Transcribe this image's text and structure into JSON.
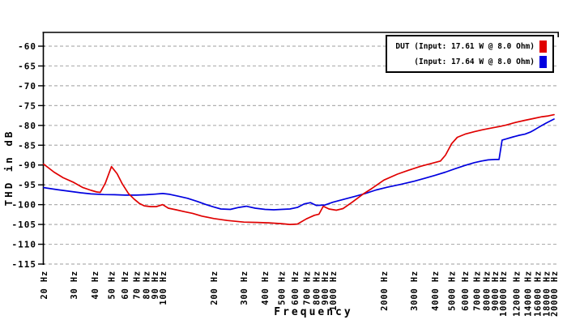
{
  "chart_data": {
    "type": "line",
    "title": "",
    "xlabel": "Frequency",
    "ylabel": "THD in dB",
    "x_scale": "log",
    "xlim": [
      20,
      20000
    ],
    "ylim": [
      -115,
      -60
    ],
    "grid": "horizontal-dashed",
    "legend_position": "top-right",
    "colors": {
      "axis": "#000000",
      "grid": "#b0b0b0",
      "background": "#ffffff"
    },
    "yticks": [
      -60,
      -65,
      -70,
      -75,
      -80,
      -85,
      -90,
      -95,
      -100,
      -105,
      -110,
      -115
    ],
    "xticks": [
      20,
      30,
      40,
      50,
      60,
      70,
      80,
      90,
      100,
      200,
      300,
      400,
      500,
      600,
      700,
      800,
      900,
      1000,
      2000,
      3000,
      4000,
      5000,
      6000,
      7000,
      8000,
      9000,
      10000,
      12000,
      14000,
      16000,
      18000,
      20000
    ],
    "xtick_labels": [
      "20 Hz",
      "30 Hz",
      "40 Hz",
      "50 Hz",
      "60 Hz",
      "70 Hz",
      "80 Hz",
      "90 Hz",
      "100 Hz",
      "200 Hz",
      "300 Hz",
      "400 Hz",
      "500 Hz",
      "600 Hz",
      "700 Hz",
      "800 Hz",
      "900 Hz",
      "1000 Hz",
      "2000 Hz",
      "3000 Hz",
      "4000 Hz",
      "5000 Hz",
      "6000 Hz",
      "7000 Hz",
      "8000 Hz",
      "9000 Hz",
      "10000 Hz",
      "12000 Hz",
      "14000 Hz",
      "16000 Hz",
      "18000 Hz",
      "20000 Hz"
    ],
    "series": [
      {
        "name": "DUT (Input: 17.61 W @ 8.0 Ohm)",
        "color": "#e00000",
        "points": [
          [
            20,
            -89.8
          ],
          [
            23,
            -91.8
          ],
          [
            26,
            -93.2
          ],
          [
            30,
            -94.4
          ],
          [
            34,
            -95.7
          ],
          [
            38,
            -96.4
          ],
          [
            41,
            -96.8
          ],
          [
            43,
            -96.9
          ],
          [
            46,
            -94.6
          ],
          [
            50,
            -90.4
          ],
          [
            54,
            -92.2
          ],
          [
            58,
            -94.8
          ],
          [
            63,
            -97.2
          ],
          [
            68,
            -98.6
          ],
          [
            73,
            -99.7
          ],
          [
            78,
            -100.3
          ],
          [
            85,
            -100.5
          ],
          [
            92,
            -100.5
          ],
          [
            100,
            -100.0
          ],
          [
            108,
            -100.9
          ],
          [
            120,
            -101.3
          ],
          [
            135,
            -101.8
          ],
          [
            150,
            -102.2
          ],
          [
            170,
            -102.9
          ],
          [
            200,
            -103.5
          ],
          [
            240,
            -104.0
          ],
          [
            300,
            -104.4
          ],
          [
            360,
            -104.5
          ],
          [
            420,
            -104.6
          ],
          [
            500,
            -104.8
          ],
          [
            560,
            -105.0
          ],
          [
            620,
            -104.9
          ],
          [
            700,
            -103.6
          ],
          [
            780,
            -102.7
          ],
          [
            830,
            -102.4
          ],
          [
            880,
            -100.4
          ],
          [
            950,
            -101.1
          ],
          [
            1050,
            -101.4
          ],
          [
            1150,
            -101.0
          ],
          [
            1300,
            -99.4
          ],
          [
            1500,
            -97.4
          ],
          [
            1700,
            -95.9
          ],
          [
            2000,
            -93.8
          ],
          [
            2400,
            -92.3
          ],
          [
            2800,
            -91.3
          ],
          [
            3300,
            -90.3
          ],
          [
            3800,
            -89.6
          ],
          [
            4300,
            -89.0
          ],
          [
            4600,
            -87.5
          ],
          [
            5000,
            -84.6
          ],
          [
            5400,
            -83.0
          ],
          [
            6000,
            -82.2
          ],
          [
            6800,
            -81.6
          ],
          [
            7600,
            -81.1
          ],
          [
            8500,
            -80.7
          ],
          [
            9500,
            -80.3
          ],
          [
            10500,
            -79.9
          ],
          [
            12000,
            -79.2
          ],
          [
            13500,
            -78.7
          ],
          [
            15000,
            -78.3
          ],
          [
            17000,
            -77.8
          ],
          [
            18500,
            -77.6
          ],
          [
            20000,
            -77.3
          ]
        ]
      },
      {
        "name": "(Input: 17.64 W @ 8.0 Ohm)",
        "color": "#0000e0",
        "points": [
          [
            20,
            -95.7
          ],
          [
            24,
            -96.2
          ],
          [
            28,
            -96.6
          ],
          [
            33,
            -97.0
          ],
          [
            38,
            -97.3
          ],
          [
            45,
            -97.45
          ],
          [
            52,
            -97.5
          ],
          [
            60,
            -97.6
          ],
          [
            70,
            -97.6
          ],
          [
            80,
            -97.5
          ],
          [
            90,
            -97.35
          ],
          [
            100,
            -97.2
          ],
          [
            110,
            -97.4
          ],
          [
            125,
            -97.9
          ],
          [
            140,
            -98.4
          ],
          [
            160,
            -99.2
          ],
          [
            180,
            -100.0
          ],
          [
            200,
            -100.6
          ],
          [
            220,
            -101.1
          ],
          [
            250,
            -101.2
          ],
          [
            280,
            -100.7
          ],
          [
            310,
            -100.4
          ],
          [
            350,
            -100.9
          ],
          [
            400,
            -101.2
          ],
          [
            450,
            -101.3
          ],
          [
            500,
            -101.2
          ],
          [
            560,
            -101.1
          ],
          [
            620,
            -100.7
          ],
          [
            680,
            -99.8
          ],
          [
            740,
            -99.5
          ],
          [
            800,
            -100.2
          ],
          [
            900,
            -100.1
          ],
          [
            1000,
            -99.4
          ],
          [
            1150,
            -98.7
          ],
          [
            1350,
            -97.9
          ],
          [
            1550,
            -97.2
          ],
          [
            1800,
            -96.3
          ],
          [
            2100,
            -95.6
          ],
          [
            2500,
            -94.9
          ],
          [
            3000,
            -94.1
          ],
          [
            3500,
            -93.3
          ],
          [
            4000,
            -92.6
          ],
          [
            4600,
            -91.8
          ],
          [
            5200,
            -91.0
          ],
          [
            6000,
            -90.1
          ],
          [
            6800,
            -89.4
          ],
          [
            7500,
            -89.0
          ],
          [
            8200,
            -88.7
          ],
          [
            9000,
            -88.6
          ],
          [
            9500,
            -88.6
          ],
          [
            9900,
            -83.7
          ],
          [
            10500,
            -83.4
          ],
          [
            11500,
            -82.9
          ],
          [
            12500,
            -82.5
          ],
          [
            13500,
            -82.2
          ],
          [
            14500,
            -81.7
          ],
          [
            15500,
            -81.0
          ],
          [
            16500,
            -80.3
          ],
          [
            18000,
            -79.4
          ],
          [
            19000,
            -78.9
          ],
          [
            20000,
            -78.4
          ]
        ]
      }
    ]
  }
}
